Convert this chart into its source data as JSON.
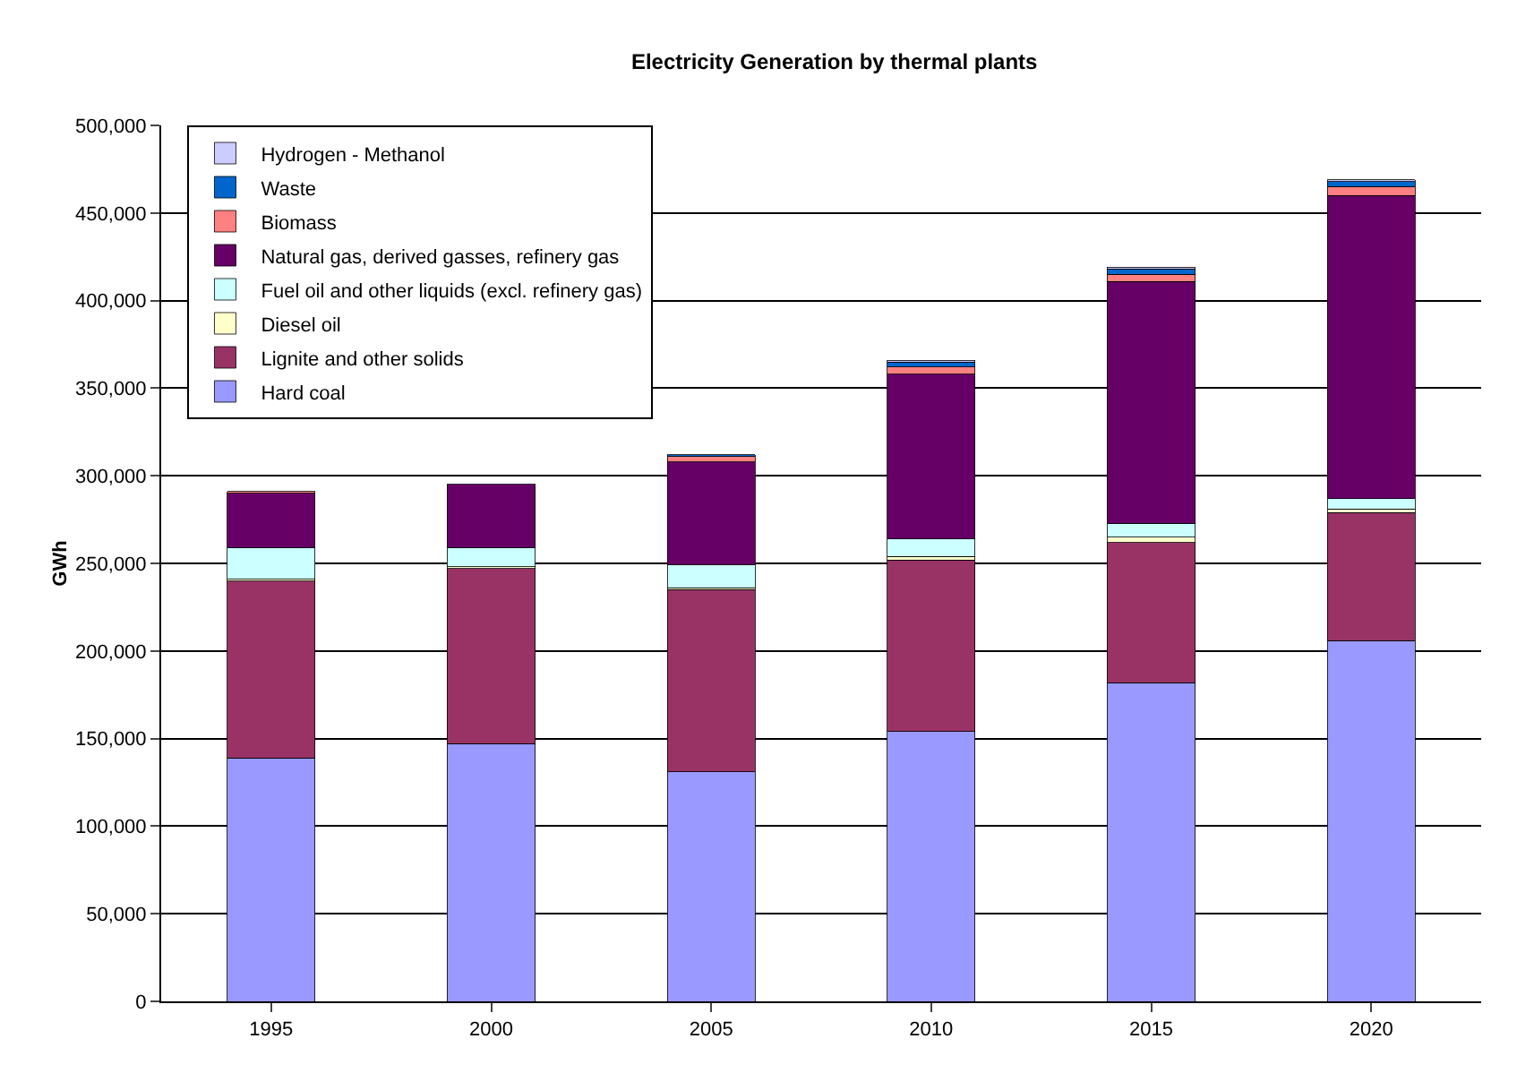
{
  "chart_data": {
    "type": "bar",
    "title": "Electricity Generation by thermal plants",
    "ylabel": "GWh",
    "categories": [
      "1995",
      "2000",
      "2005",
      "2010",
      "2015",
      "2020"
    ],
    "stacked": true,
    "series": [
      {
        "name": "Hard coal",
        "color": "#9999ff",
        "values": [
          139000,
          147000,
          131000,
          154000,
          182000,
          206000
        ]
      },
      {
        "name": "Lignite and other solids",
        "color": "#993366",
        "values": [
          101000,
          100000,
          104000,
          98000,
          80000,
          73000
        ]
      },
      {
        "name": "Diesel oil",
        "color": "#ffffcc",
        "values": [
          1000,
          1000,
          1000,
          2000,
          3000,
          2000
        ]
      },
      {
        "name": "Fuel oil and other liquids (excl. refinery gas)",
        "color": "#ccffff",
        "values": [
          18000,
          11000,
          13000,
          10000,
          8000,
          6000
        ]
      },
      {
        "name": "Natural gas, derived gasses, refinery gas",
        "color": "#660066",
        "values": [
          31000,
          36000,
          59000,
          94000,
          138000,
          173000
        ]
      },
      {
        "name": "Biomass",
        "color": "#ff8080",
        "values": [
          1000,
          null,
          3000,
          4000,
          4000,
          5000
        ]
      },
      {
        "name": "Waste",
        "color": "#0066cc",
        "values": [
          null,
          null,
          1000,
          3000,
          3000,
          3000
        ]
      },
      {
        "name": "Hydrogen - Methanol",
        "color": "#ccccff",
        "values": [
          null,
          null,
          null,
          1000,
          1000,
          1000
        ]
      }
    ],
    "ylim": [
      0,
      500000
    ],
    "yticks": [
      {
        "value": 0,
        "label": "0"
      },
      {
        "value": 50000,
        "label": "50,000"
      },
      {
        "value": 100000,
        "label": "100,000"
      },
      {
        "value": 150000,
        "label": "150,000"
      },
      {
        "value": 200000,
        "label": "200,000"
      },
      {
        "value": 250000,
        "label": "250,000"
      },
      {
        "value": 300000,
        "label": "300,000"
      },
      {
        "value": 350000,
        "label": "350,000"
      },
      {
        "value": 400000,
        "label": "400,000"
      },
      {
        "value": 450000,
        "label": "450,000"
      },
      {
        "value": 500000,
        "label": "500,000"
      }
    ],
    "grid": "y",
    "legend": "top left"
  }
}
